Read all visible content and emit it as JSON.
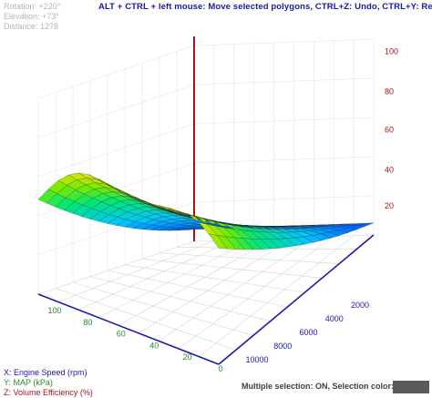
{
  "hud": {
    "rotation": "Rotation: +220°",
    "elevation": "Elevation: +73°",
    "distance": "Distance: 1278"
  },
  "hint": "ALT + CTRL + left mouse: Move selected polygons, CTRL+Z: Undo, CTRL+Y: Redo",
  "axes": {
    "x_label": "X: Engine Speed (rpm)",
    "y_label": "Y: MAP (kPa)",
    "z_label": "Z: Volume Efficiency (%)",
    "x_ticks": [
      "10000",
      "8000",
      "6000",
      "4000",
      "2000"
    ],
    "y_ticks": [
      "100",
      "80",
      "60",
      "40",
      "20",
      "0"
    ],
    "z_ticks": [
      "100",
      "80",
      "60",
      "40",
      "20"
    ]
  },
  "colors": {
    "x_axis": "#1a1aa8",
    "y_axis": "#2a8a2a",
    "z_axis": "#a01818",
    "selection": "#5a5a5a",
    "hint_text": "#1a1aa8"
  },
  "status": {
    "text": "Multiple selection: ON, Selection color:"
  }
}
